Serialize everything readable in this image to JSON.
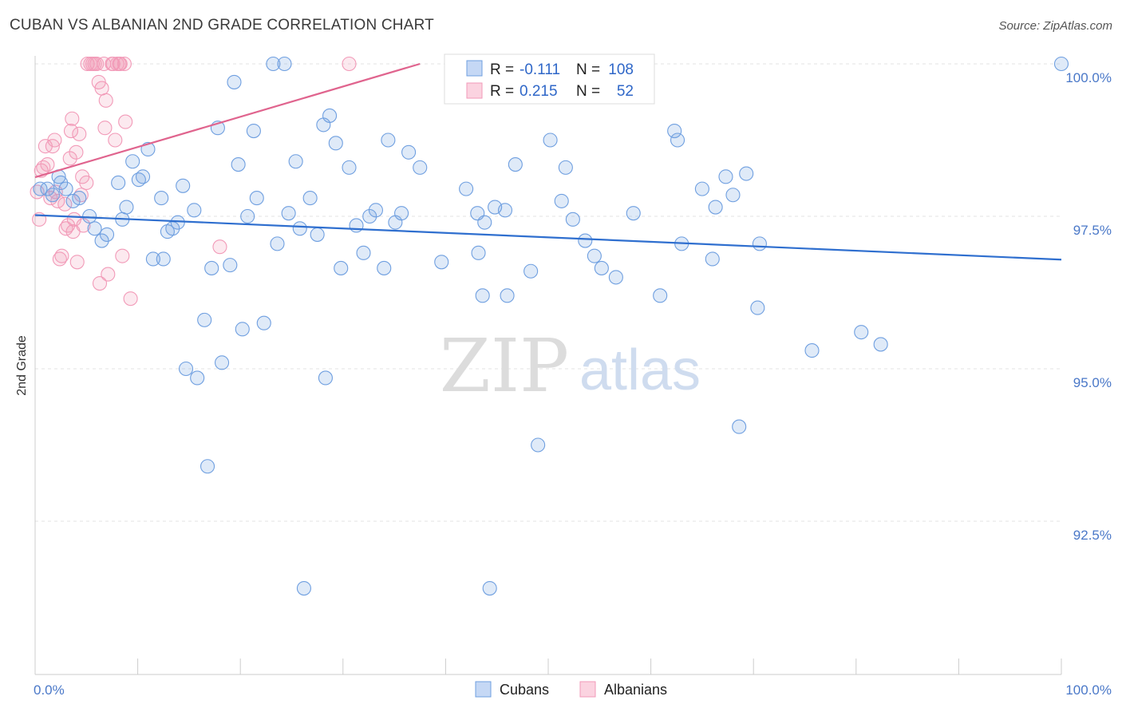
{
  "title": "CUBAN VS ALBANIAN 2ND GRADE CORRELATION CHART",
  "source": "Source: ZipAtlas.com",
  "watermark": {
    "zip": "ZIP",
    "atlas": "atlas"
  },
  "legend": {
    "rows": [
      {
        "r_label": "R =",
        "r_value": "-0.111",
        "n_label": "N =",
        "n_value": "108"
      },
      {
        "r_label": "R =",
        "r_value": "0.215",
        "n_label": "N =",
        "n_value": "52"
      }
    ]
  },
  "colors": {
    "cubans": "#6f9fe0",
    "cubans_line": "#2f6fcf",
    "albanians": "#f29ab8",
    "albanians_line": "#e0648e",
    "tick": "#4a78c8"
  },
  "chart_data": {
    "type": "scatter",
    "xlabel": "",
    "ylabel": "2nd Grade",
    "xlim": [
      0,
      100
    ],
    "ylim": [
      90.0,
      100.4
    ],
    "x_tick_labels": [
      {
        "value": 0,
        "label": "0.0%"
      },
      {
        "value": 100,
        "label": "100.0%"
      }
    ],
    "y_tick_labels": [
      {
        "value": 100.0,
        "label": "100.0%"
      },
      {
        "value": 97.5,
        "label": "97.5%"
      },
      {
        "value": 95.0,
        "label": "95.0%"
      },
      {
        "value": 92.5,
        "label": "92.5%"
      }
    ],
    "grid": "horizontal-dashed",
    "legend_position": "top-center",
    "series": [
      {
        "name": "Cubans",
        "trend": {
          "x": [
            0,
            100
          ],
          "y": [
            97.52,
            96.79
          ]
        },
        "points": [
          [
            0.5,
            97.95
          ],
          [
            1.2,
            97.95
          ],
          [
            1.7,
            97.85
          ],
          [
            2.3,
            98.15
          ],
          [
            2.5,
            98.05
          ],
          [
            3.0,
            97.95
          ],
          [
            3.7,
            97.75
          ],
          [
            4.3,
            97.8
          ],
          [
            5.3,
            97.5
          ],
          [
            5.8,
            97.3
          ],
          [
            6.5,
            97.1
          ],
          [
            7.0,
            97.2
          ],
          [
            8.1,
            98.05
          ],
          [
            8.5,
            97.45
          ],
          [
            8.9,
            97.65
          ],
          [
            9.5,
            98.4
          ],
          [
            10.1,
            98.1
          ],
          [
            10.5,
            98.15
          ],
          [
            11.0,
            98.6
          ],
          [
            11.5,
            96.8
          ],
          [
            12.3,
            97.8
          ],
          [
            12.5,
            96.8
          ],
          [
            12.9,
            97.25
          ],
          [
            13.4,
            97.3
          ],
          [
            13.9,
            97.4
          ],
          [
            14.4,
            98.0
          ],
          [
            14.7,
            95.0
          ],
          [
            15.5,
            97.6
          ],
          [
            15.8,
            94.85
          ],
          [
            16.5,
            95.8
          ],
          [
            16.8,
            93.4
          ],
          [
            17.2,
            96.65
          ],
          [
            17.8,
            98.95
          ],
          [
            18.2,
            95.1
          ],
          [
            19.0,
            96.7
          ],
          [
            19.4,
            99.7
          ],
          [
            19.8,
            98.35
          ],
          [
            20.2,
            95.65
          ],
          [
            20.7,
            97.5
          ],
          [
            21.3,
            98.9
          ],
          [
            21.6,
            97.8
          ],
          [
            22.3,
            95.75
          ],
          [
            23.2,
            100.0
          ],
          [
            23.6,
            97.05
          ],
          [
            24.3,
            100.0
          ],
          [
            24.7,
            97.55
          ],
          [
            25.4,
            98.4
          ],
          [
            25.8,
            97.3
          ],
          [
            26.2,
            91.4
          ],
          [
            26.8,
            97.8
          ],
          [
            27.5,
            97.2
          ],
          [
            28.1,
            99.0
          ],
          [
            28.3,
            94.85
          ],
          [
            28.7,
            99.15
          ],
          [
            29.3,
            98.7
          ],
          [
            29.8,
            96.65
          ],
          [
            30.6,
            98.3
          ],
          [
            31.3,
            97.35
          ],
          [
            32.0,
            96.9
          ],
          [
            32.6,
            97.5
          ],
          [
            33.2,
            97.6
          ],
          [
            34.0,
            96.65
          ],
          [
            34.4,
            98.75
          ],
          [
            35.1,
            97.4
          ],
          [
            35.7,
            97.55
          ],
          [
            36.4,
            98.55
          ],
          [
            37.5,
            98.3
          ],
          [
            39.6,
            96.75
          ],
          [
            42.0,
            97.95
          ],
          [
            43.1,
            97.55
          ],
          [
            43.2,
            96.9
          ],
          [
            43.6,
            96.2
          ],
          [
            43.8,
            97.4
          ],
          [
            44.3,
            91.4
          ],
          [
            44.8,
            97.65
          ],
          [
            45.8,
            97.6
          ],
          [
            46.0,
            96.2
          ],
          [
            46.8,
            98.35
          ],
          [
            48.3,
            96.6
          ],
          [
            49.0,
            93.75
          ],
          [
            50.2,
            98.75
          ],
          [
            51.3,
            97.75
          ],
          [
            51.7,
            98.3
          ],
          [
            52.4,
            97.45
          ],
          [
            53.6,
            97.1
          ],
          [
            54.5,
            96.85
          ],
          [
            55.2,
            96.65
          ],
          [
            56.6,
            96.5
          ],
          [
            58.3,
            97.55
          ],
          [
            60.9,
            96.2
          ],
          [
            62.3,
            98.9
          ],
          [
            62.6,
            98.75
          ],
          [
            63.0,
            97.05
          ],
          [
            65.0,
            97.95
          ],
          [
            66.0,
            96.8
          ],
          [
            66.3,
            97.65
          ],
          [
            67.3,
            98.15
          ],
          [
            68.0,
            97.85
          ],
          [
            68.6,
            94.05
          ],
          [
            69.3,
            98.2
          ],
          [
            70.4,
            96.0
          ],
          [
            70.6,
            97.05
          ],
          [
            75.7,
            95.3
          ],
          [
            80.5,
            95.6
          ],
          [
            82.4,
            95.4
          ],
          [
            100.0,
            100.0
          ]
        ]
      },
      {
        "name": "Albanians",
        "trend": {
          "x": [
            0,
            37.5
          ],
          "y": [
            98.14,
            100.0
          ]
        },
        "points": [
          [
            0.2,
            97.9
          ],
          [
            0.4,
            97.45
          ],
          [
            0.6,
            98.25
          ],
          [
            0.8,
            98.3
          ],
          [
            1.0,
            98.65
          ],
          [
            1.2,
            98.35
          ],
          [
            1.5,
            97.8
          ],
          [
            1.7,
            98.65
          ],
          [
            1.9,
            98.75
          ],
          [
            2.0,
            97.9
          ],
          [
            2.2,
            97.75
          ],
          [
            2.4,
            96.8
          ],
          [
            2.6,
            96.85
          ],
          [
            2.9,
            97.7
          ],
          [
            3.0,
            97.3
          ],
          [
            3.2,
            97.35
          ],
          [
            3.4,
            98.45
          ],
          [
            3.5,
            98.9
          ],
          [
            3.6,
            99.1
          ],
          [
            3.7,
            97.25
          ],
          [
            3.8,
            97.45
          ],
          [
            4.0,
            98.55
          ],
          [
            4.1,
            96.75
          ],
          [
            4.3,
            98.85
          ],
          [
            4.5,
            97.85
          ],
          [
            4.6,
            98.15
          ],
          [
            4.7,
            97.35
          ],
          [
            5.0,
            98.05
          ],
          [
            5.1,
            100.0
          ],
          [
            5.4,
            100.0
          ],
          [
            5.6,
            100.0
          ],
          [
            5.8,
            100.0
          ],
          [
            6.0,
            100.0
          ],
          [
            6.2,
            99.7
          ],
          [
            6.3,
            96.4
          ],
          [
            6.5,
            99.6
          ],
          [
            6.7,
            100.0
          ],
          [
            6.8,
            98.95
          ],
          [
            6.9,
            99.4
          ],
          [
            7.1,
            96.55
          ],
          [
            7.5,
            100.0
          ],
          [
            7.6,
            100.0
          ],
          [
            7.8,
            98.75
          ],
          [
            8.0,
            100.0
          ],
          [
            8.2,
            100.0
          ],
          [
            8.3,
            100.0
          ],
          [
            8.5,
            96.85
          ],
          [
            8.7,
            100.0
          ],
          [
            8.8,
            99.05
          ],
          [
            9.3,
            96.15
          ],
          [
            18.0,
            97.0
          ],
          [
            30.6,
            100.0
          ]
        ]
      }
    ]
  },
  "bottom_legend": [
    "Cubans",
    "Albanians"
  ]
}
